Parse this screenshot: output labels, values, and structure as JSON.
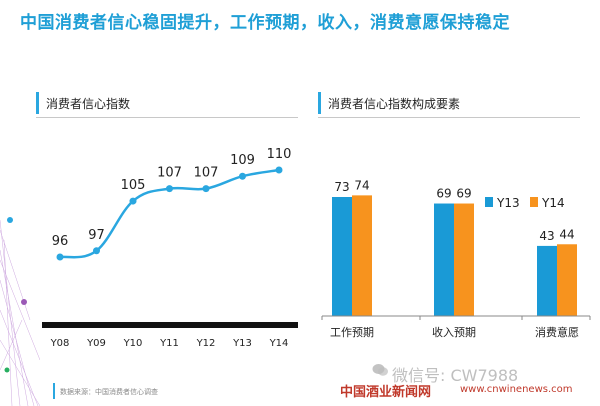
{
  "title": "中国消费者信心稳固提升，工作预期，收入，消费意愿保持稳定",
  "colors": {
    "accent": "#1f9fd6",
    "y13": "#1a9ad6",
    "y14": "#f7931e",
    "axis": "#111111"
  },
  "left_panel": {
    "header": "消费者信心指数"
  },
  "right_panel": {
    "header": "消费者信心指数构成要素"
  },
  "footer": {
    "source": "数据来源：中国消费者信心调查"
  },
  "watermark": {
    "wechat": "微信号: CW7988",
    "site": "中国酒业新闻网",
    "url": "www.cnwinenews.com"
  },
  "chart_data": [
    {
      "type": "line",
      "title": "消费者信心指数",
      "categories": [
        "Y08",
        "Y09",
        "Y10",
        "Y11",
        "Y12",
        "Y13",
        "Y14"
      ],
      "values": [
        96,
        97,
        105,
        107,
        107,
        109,
        110
      ],
      "series_color": "#2aa7e0",
      "grid": false
    },
    {
      "type": "bar",
      "title": "消费者信心指数构成要素",
      "categories": [
        "工作预期",
        "收入预期",
        "消费意愿"
      ],
      "series": [
        {
          "name": "Y13",
          "values": [
            73,
            69,
            43
          ]
        },
        {
          "name": "Y14",
          "values": [
            74,
            69,
            44
          ]
        }
      ],
      "legend": "right",
      "grid": false
    }
  ]
}
